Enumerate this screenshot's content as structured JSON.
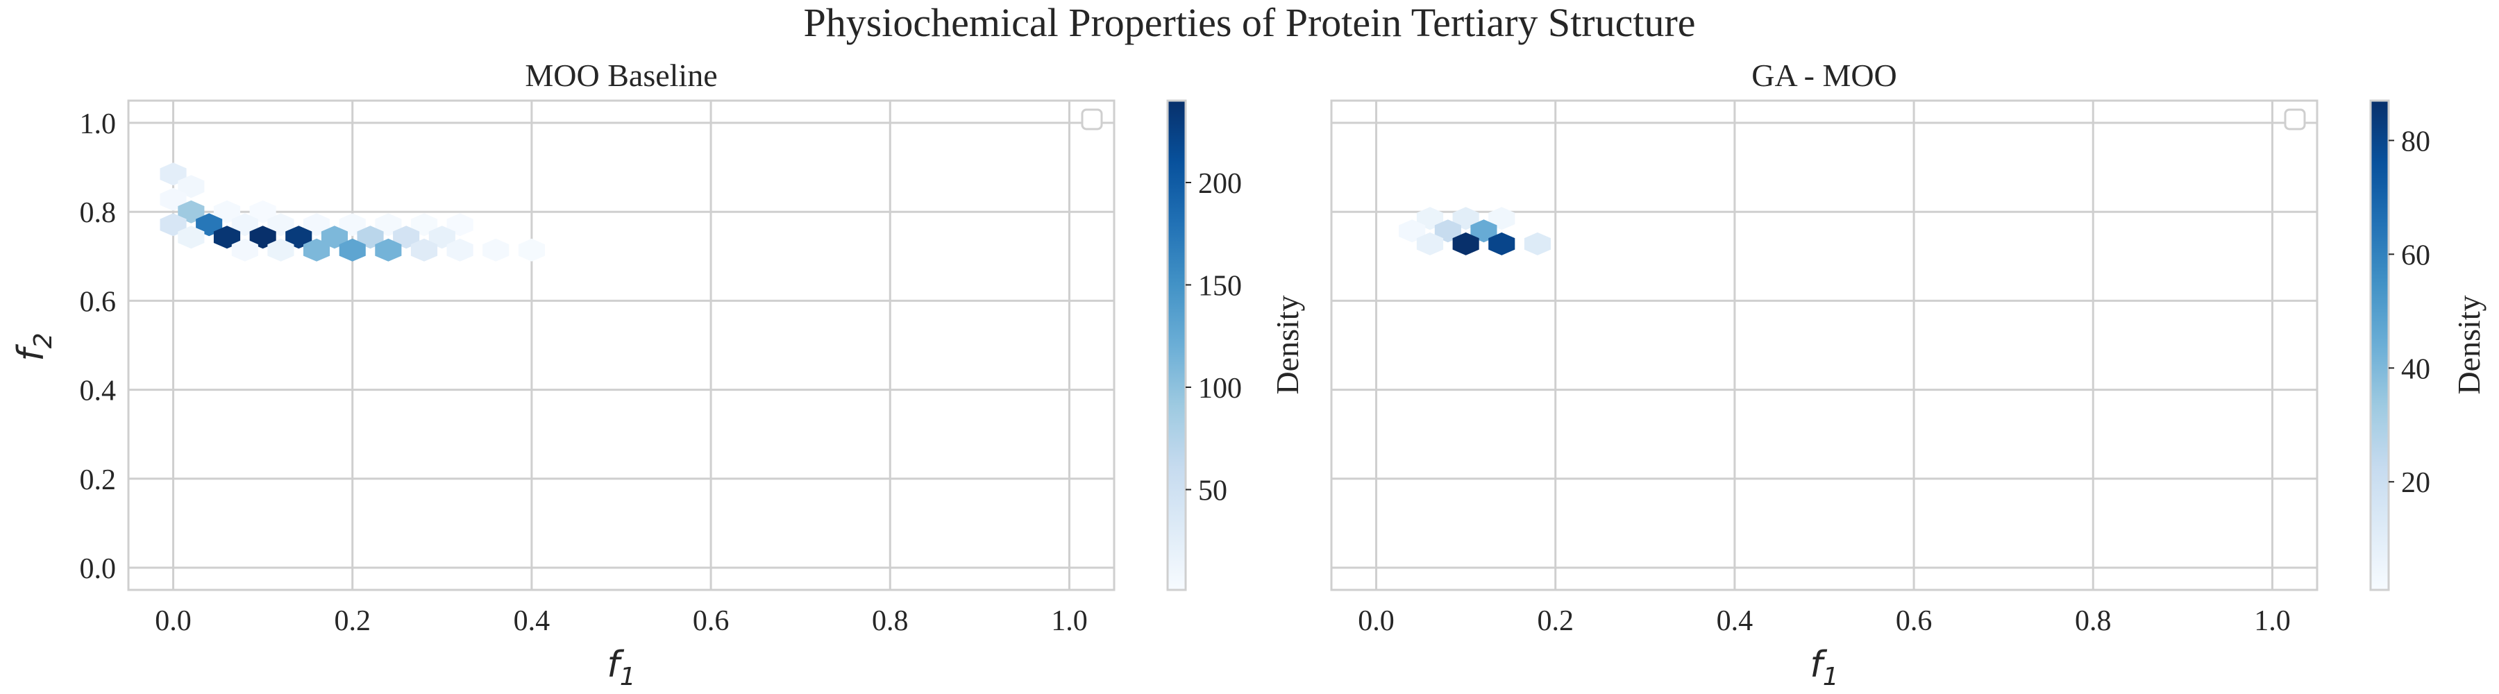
{
  "figure": {
    "title": "Physiochemical Properties of Protein Tertiary Structure"
  },
  "colors": {
    "grid": "#cfcfcf",
    "text": "#262626",
    "cmap": [
      "#f7fbff",
      "#deebf7",
      "#c6dbef",
      "#9ecae1",
      "#6baed6",
      "#4292c6",
      "#2171b5",
      "#08519c",
      "#08306b"
    ]
  },
  "chart_data": [
    {
      "type": "heatmap",
      "title": "MOO Baseline",
      "xlabel": "f",
      "xlabel_sub": "1",
      "ylabel": "f",
      "ylabel_sub": "2",
      "xlim": [
        -0.05,
        1.05
      ],
      "ylim": [
        -0.05,
        1.05
      ],
      "xticks": [
        0.0,
        0.2,
        0.4,
        0.6,
        0.8,
        1.0
      ],
      "xtick_labels": [
        "0.0",
        "0.2",
        "0.4",
        "0.6",
        "0.8",
        "1.0"
      ],
      "yticks": [
        0.0,
        0.2,
        0.4,
        0.6,
        0.8,
        1.0
      ],
      "ytick_labels": [
        "0.0",
        "0.2",
        "0.4",
        "0.6",
        "0.8",
        "1.0"
      ],
      "grid": true,
      "legend": "top-right (empty)",
      "colorbar": {
        "label": "Density",
        "range": [
          1,
          240
        ],
        "ticks": [
          50,
          100,
          150,
          200
        ],
        "tick_labels": [
          "50",
          "100",
          "150",
          "200"
        ]
      },
      "cells": [
        {
          "x": 0.0,
          "y": 0.885,
          "value": 25
        },
        {
          "x": 0.02,
          "y": 0.857,
          "value": 8
        },
        {
          "x": 0.0,
          "y": 0.828,
          "value": 6
        },
        {
          "x": 0.02,
          "y": 0.8,
          "value": 90
        },
        {
          "x": 0.06,
          "y": 0.8,
          "value": 4
        },
        {
          "x": 0.1,
          "y": 0.8,
          "value": 2
        },
        {
          "x": 0.0,
          "y": 0.771,
          "value": 40
        },
        {
          "x": 0.04,
          "y": 0.771,
          "value": 175
        },
        {
          "x": 0.08,
          "y": 0.771,
          "value": 10
        },
        {
          "x": 0.12,
          "y": 0.771,
          "value": 8
        },
        {
          "x": 0.16,
          "y": 0.771,
          "value": 6
        },
        {
          "x": 0.2,
          "y": 0.771,
          "value": 5
        },
        {
          "x": 0.24,
          "y": 0.771,
          "value": 4
        },
        {
          "x": 0.28,
          "y": 0.771,
          "value": 3
        },
        {
          "x": 0.32,
          "y": 0.771,
          "value": 2
        },
        {
          "x": 0.02,
          "y": 0.743,
          "value": 15
        },
        {
          "x": 0.06,
          "y": 0.743,
          "value": 235
        },
        {
          "x": 0.1,
          "y": 0.743,
          "value": 240
        },
        {
          "x": 0.14,
          "y": 0.743,
          "value": 230
        },
        {
          "x": 0.18,
          "y": 0.743,
          "value": 110
        },
        {
          "x": 0.22,
          "y": 0.743,
          "value": 70
        },
        {
          "x": 0.26,
          "y": 0.743,
          "value": 45
        },
        {
          "x": 0.3,
          "y": 0.743,
          "value": 20
        },
        {
          "x": 0.08,
          "y": 0.714,
          "value": 6
        },
        {
          "x": 0.12,
          "y": 0.714,
          "value": 15
        },
        {
          "x": 0.16,
          "y": 0.714,
          "value": 110
        },
        {
          "x": 0.2,
          "y": 0.714,
          "value": 130
        },
        {
          "x": 0.24,
          "y": 0.714,
          "value": 115
        },
        {
          "x": 0.28,
          "y": 0.714,
          "value": 30
        },
        {
          "x": 0.32,
          "y": 0.714,
          "value": 10
        },
        {
          "x": 0.36,
          "y": 0.714,
          "value": 5
        },
        {
          "x": 0.4,
          "y": 0.714,
          "value": 3
        }
      ]
    },
    {
      "type": "heatmap",
      "title": "GA - MOO",
      "xlabel": "f",
      "xlabel_sub": "1",
      "xlim": [
        -0.05,
        1.05
      ],
      "ylim": [
        -0.05,
        1.05
      ],
      "xticks": [
        0.0,
        0.2,
        0.4,
        0.6,
        0.8,
        1.0
      ],
      "xtick_labels": [
        "0.0",
        "0.2",
        "0.4",
        "0.6",
        "0.8",
        "1.0"
      ],
      "yticks": [
        0.0,
        0.2,
        0.4,
        0.6,
        0.8,
        1.0
      ],
      "grid": true,
      "legend": "top-right (empty)",
      "colorbar": {
        "label": "Density",
        "range": [
          1,
          87
        ],
        "ticks": [
          20,
          40,
          60,
          80
        ],
        "tick_labels": [
          "20",
          "40",
          "60",
          "80"
        ]
      },
      "cells": [
        {
          "x": 0.06,
          "y": 0.785,
          "value": 6
        },
        {
          "x": 0.1,
          "y": 0.785,
          "value": 10
        },
        {
          "x": 0.14,
          "y": 0.785,
          "value": 4
        },
        {
          "x": 0.08,
          "y": 0.757,
          "value": 22
        },
        {
          "x": 0.12,
          "y": 0.757,
          "value": 45
        },
        {
          "x": 0.04,
          "y": 0.757,
          "value": 3
        },
        {
          "x": 0.06,
          "y": 0.728,
          "value": 8
        },
        {
          "x": 0.1,
          "y": 0.728,
          "value": 87
        },
        {
          "x": 0.14,
          "y": 0.728,
          "value": 80
        },
        {
          "x": 0.18,
          "y": 0.728,
          "value": 12
        }
      ]
    }
  ]
}
